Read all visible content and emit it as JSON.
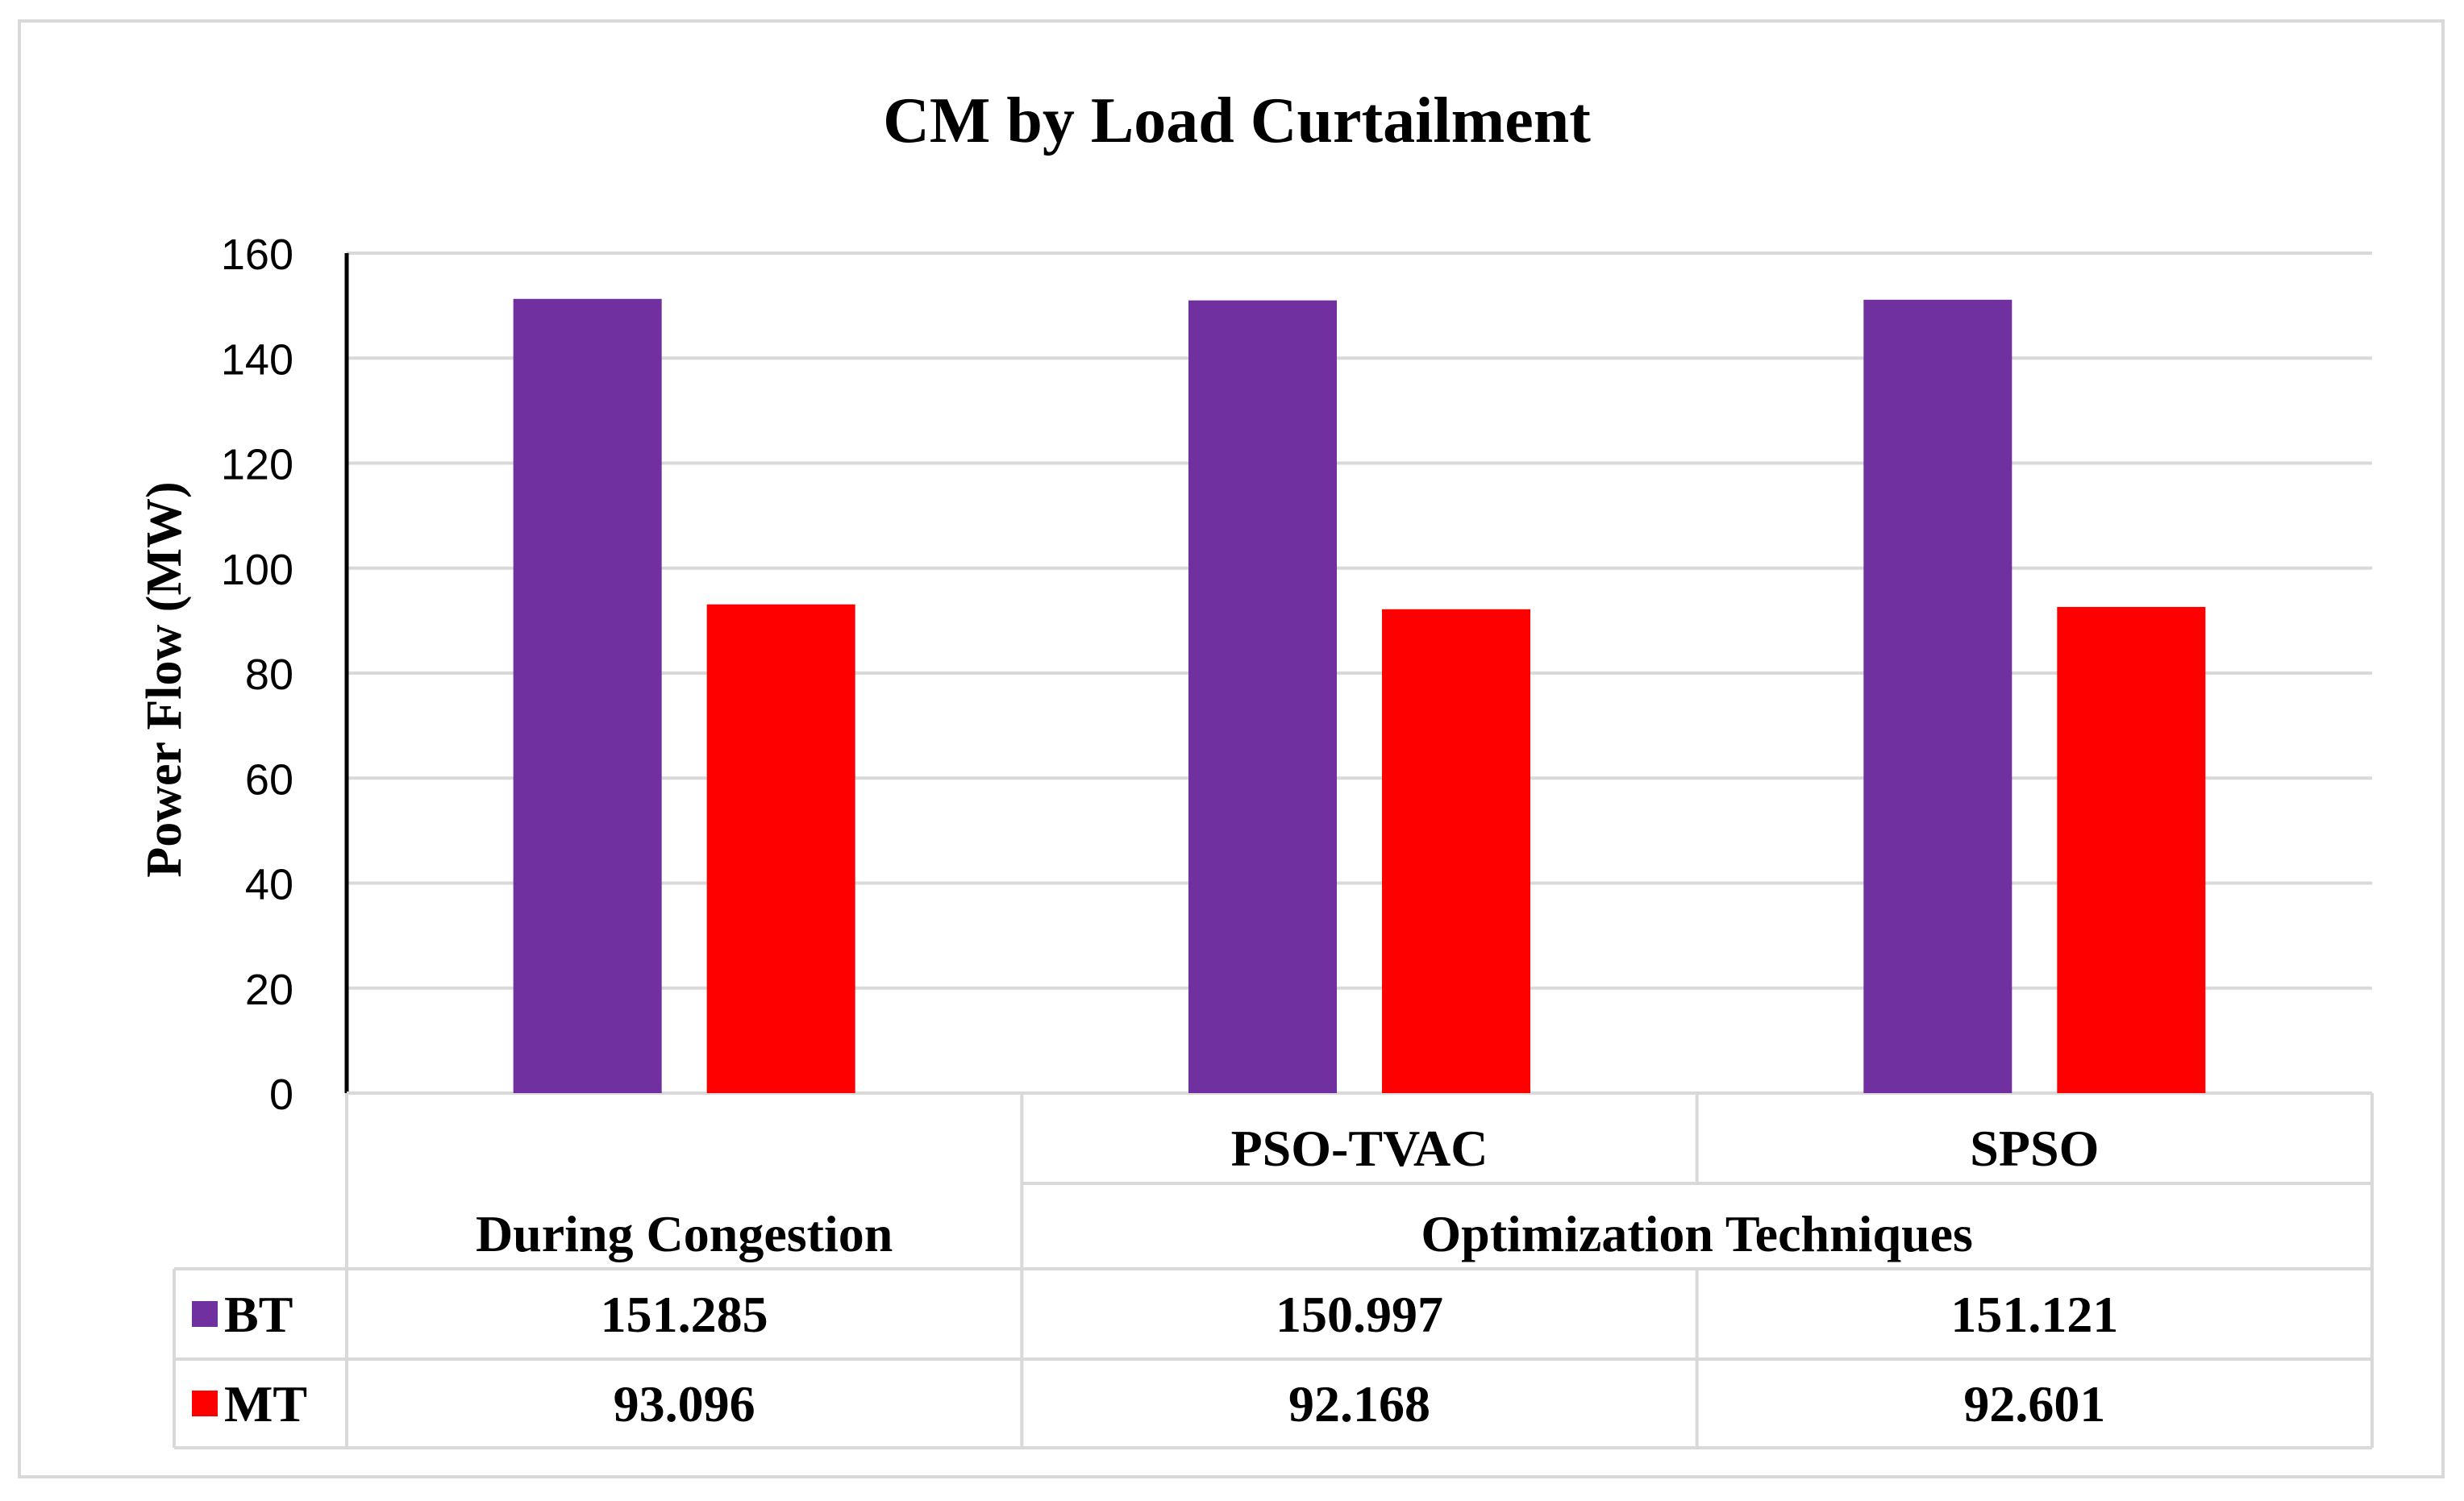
{
  "chart_data": {
    "type": "bar",
    "title": "CM by Load Curtailment",
    "ylabel": "Power Flow (MW)",
    "ylim": [
      0,
      160
    ],
    "yticks": [
      0,
      20,
      40,
      60,
      80,
      100,
      120,
      140,
      160
    ],
    "grid": true,
    "categories": [
      "During Congestion",
      "PSO-TVAC",
      "SPSO"
    ],
    "category_groups": [
      {
        "label": "During Congestion",
        "members": [
          "During Congestion"
        ]
      },
      {
        "label": "Optimization Techniques",
        "members": [
          "PSO-TVAC",
          "SPSO"
        ]
      }
    ],
    "series": [
      {
        "name": "BT",
        "color": "#7030a0",
        "values": [
          151.285,
          150.997,
          151.121
        ],
        "labels": [
          "151.285",
          "150.997",
          "151.121"
        ]
      },
      {
        "name": "MT",
        "color": "#ff0000",
        "values": [
          93.096,
          92.168,
          92.601
        ],
        "labels": [
          "93.096",
          "92.168",
          "92.601"
        ]
      }
    ],
    "data_table": true
  }
}
